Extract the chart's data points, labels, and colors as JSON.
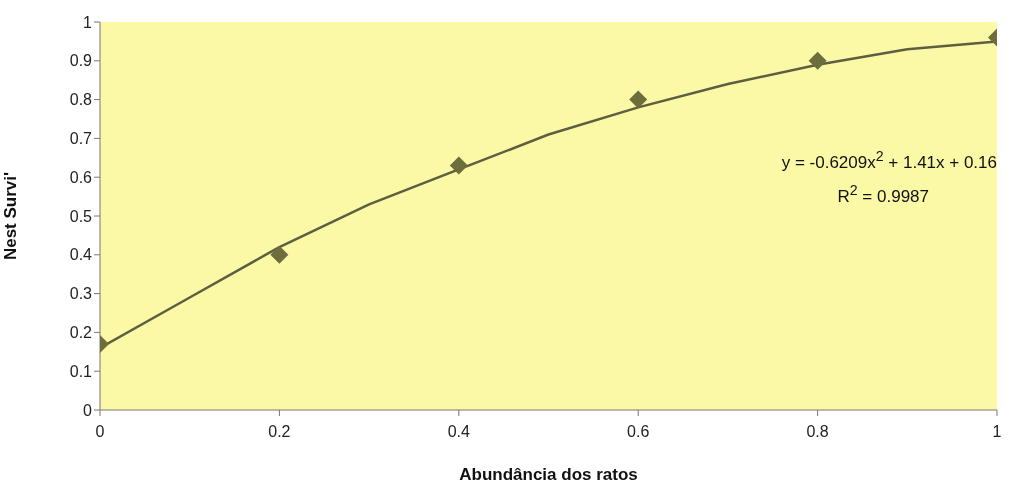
{
  "chart_data": {
    "type": "scatter",
    "xlabel": "Abundância dos ratos",
    "ylabel": "Nest Survi'",
    "x": [
      0,
      0.2,
      0.4,
      0.6,
      0.8,
      1
    ],
    "series": [
      {
        "color": "#6e6e3c",
        "marker": "diamond",
        "values": [
          0.17,
          0.4,
          0.63,
          0.8,
          0.9,
          0.96
        ]
      },
      {
        "type": "line",
        "color": "#5e5e40",
        "marker": "none",
        "line_style": "solid",
        "x": [
          0,
          0.1,
          0.2,
          0.3,
          0.4,
          0.5,
          0.6,
          0.7,
          0.8,
          0.9,
          1
        ],
        "values": [
          0.16,
          0.29,
          0.42,
          0.53,
          0.62,
          0.71,
          0.78,
          0.84,
          0.89,
          0.93,
          0.95
        ]
      }
    ],
    "annotations": [
      "y = -0.6209x$^{2}$ + 1.41x + 0.16",
      "R$^{2}$ = 0.9987"
    ],
    "xlim": [
      0,
      1
    ],
    "xticks": [
      0,
      0.2,
      0.4,
      0.6,
      0.8,
      1
    ],
    "ylim": [
      0,
      1
    ],
    "yticks": [
      0,
      0.1,
      0.2,
      0.3,
      0.4,
      0.5,
      0.6,
      0.7,
      0.8,
      0.9,
      1
    ],
    "grid": false,
    "legend": false
  }
}
